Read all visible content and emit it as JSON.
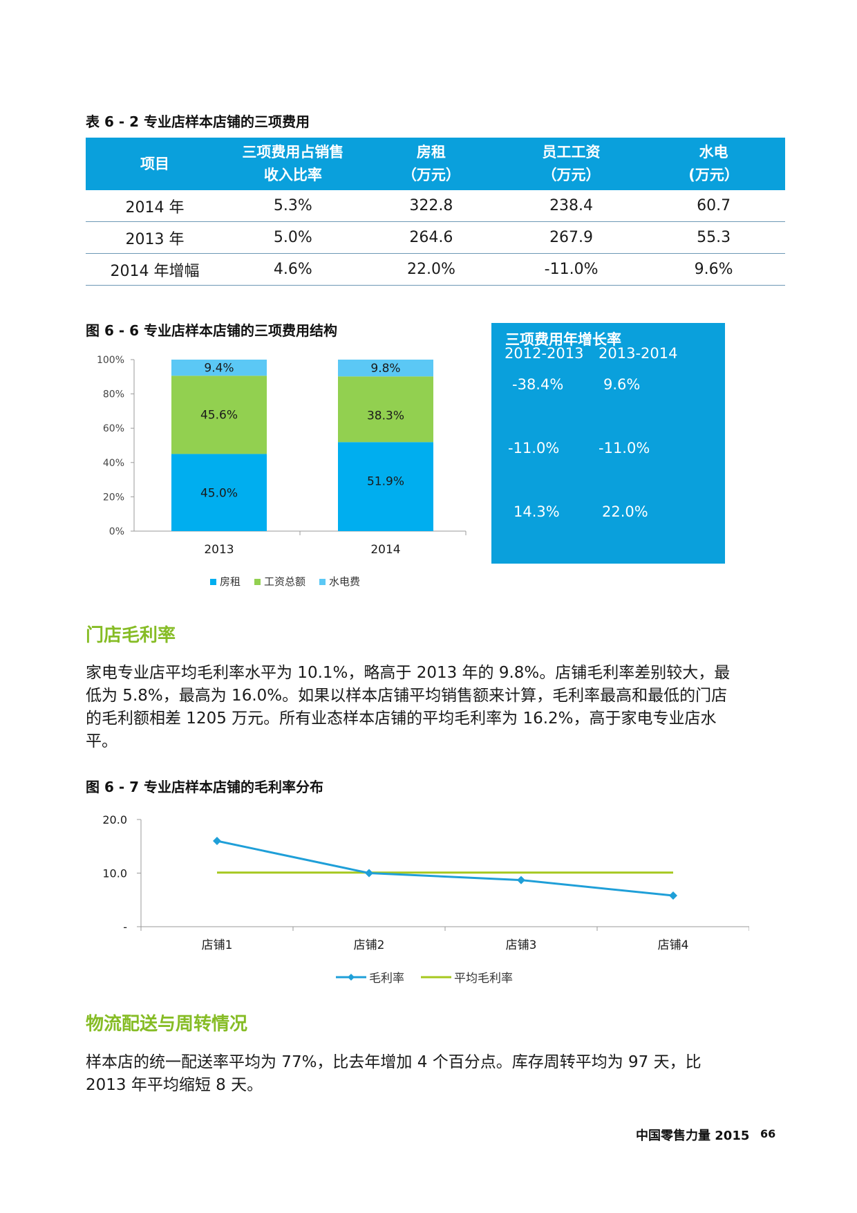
{
  "table": {
    "caption": "表 6 - 2 专业店样本店铺的三项费用",
    "headers": [
      {
        "l1": "项目",
        "l2": ""
      },
      {
        "l1": "三项费用占销售",
        "l2": "收入比率"
      },
      {
        "l1": "房租",
        "l2": "（万元）"
      },
      {
        "l1": "员工工资",
        "l2": "（万元）"
      },
      {
        "l1": "水电",
        "l2": "(万元）"
      }
    ],
    "rows": [
      [
        "2014 年",
        "5.3%",
        "322.8",
        "238.4",
        "60.7"
      ],
      [
        "2013 年",
        "5.0%",
        "264.6",
        "267.9",
        "55.3"
      ],
      [
        "2014 年增幅",
        "4.6%",
        "22.0%",
        "-11.0%",
        "9.6%"
      ]
    ]
  },
  "chart66": {
    "caption": "图 6 - 6 专业店样本店铺的三项费用结构",
    "colors": {
      "rent": "#00aeef",
      "wage": "#92d050",
      "utility": "#5bc8f5"
    }
  },
  "chart_data": [
    {
      "type": "bar",
      "stacked": true,
      "title": "图 6 - 6 专业店样本店铺的三项费用结构",
      "categories": [
        "2013",
        "2014"
      ],
      "series": [
        {
          "name": "房租",
          "values": [
            45.0,
            51.9
          ],
          "labels": [
            "45.0%",
            "51.9%"
          ]
        },
        {
          "name": "工资总额",
          "values": [
            45.6,
            38.3
          ],
          "labels": [
            "45.6%",
            "38.3%"
          ]
        },
        {
          "name": "水电费",
          "values": [
            9.4,
            9.8
          ],
          "labels": [
            "9.4%",
            "9.8%"
          ]
        }
      ],
      "yticks": [
        "0%",
        "20%",
        "40%",
        "60%",
        "80%",
        "100%"
      ],
      "ylim": [
        0,
        100
      ],
      "legend": "bottom"
    },
    {
      "type": "line",
      "title": "图 6 - 7 专业店样本店铺的毛利率分布",
      "categories": [
        "店铺1",
        "店铺2",
        "店铺3",
        "店铺4"
      ],
      "series": [
        {
          "name": "毛利率",
          "values": [
            16.0,
            10.0,
            8.7,
            5.8
          ],
          "color": "#1f9fd8",
          "marker": "diamond"
        },
        {
          "name": "平均毛利率",
          "values": [
            10.1,
            10.1,
            10.1,
            10.1
          ],
          "color": "#a6c81e"
        }
      ],
      "yticks": [
        "-",
        "10.0",
        "20.0"
      ],
      "ylim": [
        0,
        20
      ],
      "legend": "bottom"
    }
  ],
  "growth": {
    "title": "三项费用年增长率",
    "col1": "2012-2013",
    "col2": "2013-2014",
    "rows": [
      [
        "-38.4%",
        "9.6%"
      ],
      [
        "-11.0%",
        "-11.0%"
      ],
      [
        "14.3%",
        "22.0%"
      ]
    ]
  },
  "sec1": {
    "title": "门店毛利率",
    "lines": [
      "家电专业店平均毛利率水平为 10.1%，略高于 2013 年的 9.8%。店铺毛利率差别较大，最",
      "低为 5.8%，最高为 16.0%。如果以样本店铺平均销售额来计算，毛利率最高和最低的门店",
      "的毛利额相差 1205 万元。所有业态样本店铺的平均毛利率为 16.2%，高于家电专业店水",
      "平。"
    ]
  },
  "chart67": {
    "caption": "图 6 - 7 专业店样本店铺的毛利率分布"
  },
  "sec2": {
    "title": "物流配送与周转情况",
    "lines": [
      "样本店的统一配送率平均为 77%，比去年增加 4 个百分点。库存周转平均为 97 天，比",
      "2013 年平均缩短 8 天。"
    ]
  },
  "footer": {
    "text": "中国零售力量 2015",
    "page": "66"
  }
}
